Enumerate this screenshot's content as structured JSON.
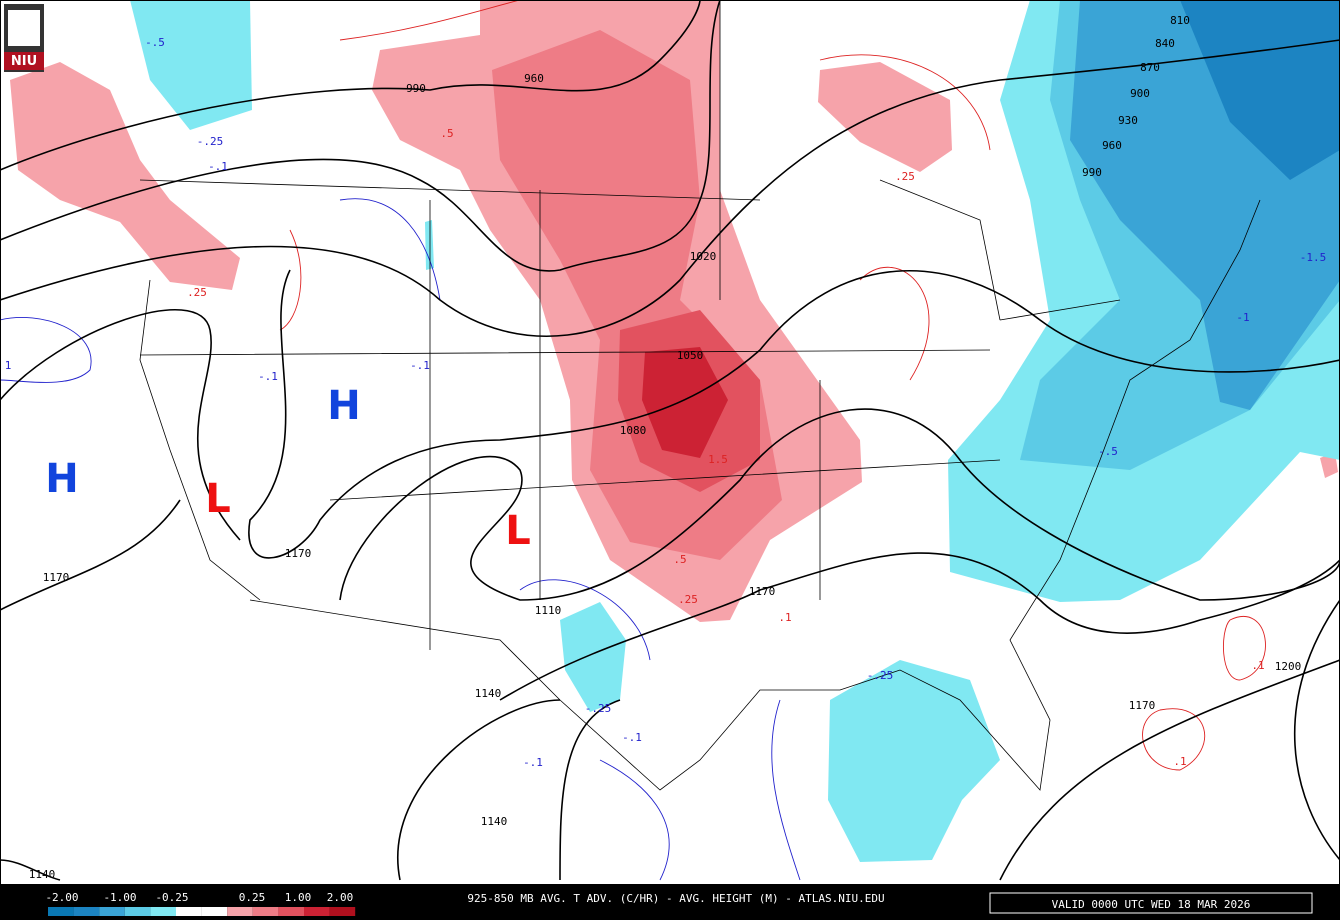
{
  "logo": "NIU",
  "title": "925-850 MB AVG. T ADV. (C/HR) - AVG. HEIGHT (M) - ATLAS.NIU.EDU",
  "valid": "VALID 0000 UTC WED 18 MAR 2026",
  "legend": {
    "labels": [
      "-2.00",
      "-1.00",
      "-0.25",
      "0.25",
      "1.00",
      "2.00"
    ]
  },
  "pressure_systems": [
    "H",
    "H",
    "L",
    "L"
  ],
  "height_labels": [
    "990",
    "960",
    "1020",
    "1050",
    "1080",
    "1110",
    "1170",
    "1140",
    "1170",
    "1140",
    "1140",
    "1170",
    "1200",
    "810",
    "840",
    "870",
    "900",
    "930",
    "960",
    "990",
    "1170"
  ],
  "advection_labels": [
    "-.5",
    "-.25",
    "-.1",
    ".5",
    ".25",
    ".25",
    "-.1",
    "-.1",
    "-1.5",
    "-1",
    "1.5",
    ".5",
    ".25",
    ".1",
    "-.25",
    "-.25",
    "-.1",
    "-.1",
    ".1",
    ".1",
    "-.5",
    "1"
  ]
}
